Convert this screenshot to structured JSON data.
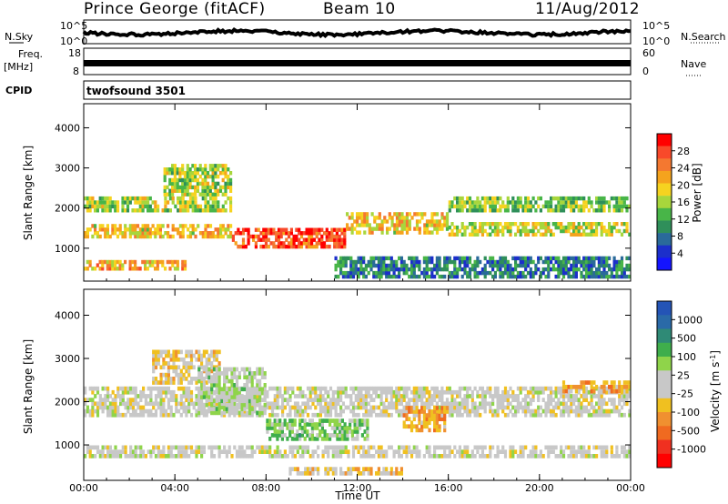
{
  "header": {
    "title": "Prince George (fitACF)",
    "beam": "Beam 10",
    "date": "11/Aug/2012"
  },
  "top_panels": {
    "nsky_label": "N.Sky",
    "nsearch_label": "N.Search",
    "noise_ticks": [
      "10^5",
      "10^0"
    ],
    "freq_label": "Freq.",
    "freq_unit": "[MHz]",
    "freq_ticks": [
      "18",
      "8"
    ],
    "nave_label": "Nave",
    "nave_ticks": [
      "60",
      "0"
    ],
    "cpid_label": "CPID",
    "cpid_value": "twofsound 3501"
  },
  "colorbars": {
    "power": {
      "label": "Power [dB]",
      "ticks": [
        "28",
        "24",
        "20",
        "16",
        "12",
        "8",
        "4"
      ],
      "colors": [
        "#ff0000",
        "#f8492a",
        "#f47830",
        "#f5a31d",
        "#f6d320",
        "#a8d63c",
        "#48b548",
        "#2f8f5a",
        "#2a6a9a",
        "#1c2fcb",
        "#1414ff"
      ]
    },
    "velocity": {
      "label": "Velocity [m s",
      "label_sup": "-1",
      "label_end": "]",
      "ticks": [
        "1000",
        "500",
        "100",
        "25",
        "-25",
        "-100",
        "-500",
        "-1000"
      ],
      "colors": [
        "#2454b6",
        "#2a6aa8",
        "#2f8a76",
        "#3fae4c",
        "#8fd44a",
        "#c8c8c8",
        "#c8c8c8",
        "#f0c020",
        "#f09030",
        "#f06a20",
        "#f03020",
        "#ff0000"
      ]
    }
  },
  "chart_data": [
    {
      "type": "heatmap",
      "title": "Power",
      "xlabel": "Time UT",
      "ylabel": "Slant Range [km]",
      "x_ticks": [
        "00:00",
        "04:00",
        "08:00",
        "12:00",
        "16:00",
        "20:00",
        "00:00"
      ],
      "y_ticks": [
        "4000",
        "3000",
        "2000",
        "1000"
      ],
      "xlim_hours": [
        0,
        24
      ],
      "ylim_km": [
        180,
        4600
      ],
      "colorbar": "Power [dB]",
      "value_range_db": [
        0,
        32
      ],
      "bands": [
        {
          "t0": 0.0,
          "t1": 6.5,
          "r0": 1900,
          "r1": 2300,
          "v": 16
        },
        {
          "t0": 0.0,
          "t1": 6.5,
          "r0": 1250,
          "r1": 1600,
          "v": 20
        },
        {
          "t0": 0.0,
          "t1": 4.5,
          "r0": 450,
          "r1": 700,
          "v": 22
        },
        {
          "t0": 3.5,
          "t1": 6.5,
          "r0": 2300,
          "r1": 3100,
          "v": 16
        },
        {
          "t0": 6.5,
          "t1": 11.5,
          "r0": 1000,
          "r1": 1500,
          "v": 28
        },
        {
          "t0": 11.5,
          "t1": 16.0,
          "r0": 1350,
          "r1": 1900,
          "v": 20
        },
        {
          "t0": 16.0,
          "t1": 24.0,
          "r0": 1900,
          "r1": 2300,
          "v": 14
        },
        {
          "t0": 16.0,
          "t1": 24.0,
          "r0": 1300,
          "r1": 1650,
          "v": 18
        },
        {
          "t0": 11.0,
          "t1": 24.0,
          "r0": 250,
          "r1": 800,
          "v": 8
        }
      ]
    },
    {
      "type": "heatmap",
      "title": "Velocity",
      "xlabel": "Time UT",
      "ylabel": "Slant Range [km]",
      "x_ticks": [
        "00:00",
        "04:00",
        "08:00",
        "12:00",
        "16:00",
        "20:00",
        "00:00"
      ],
      "y_ticks": [
        "4000",
        "3000",
        "2000",
        "1000"
      ],
      "xlim_hours": [
        0,
        24
      ],
      "ylim_km": [
        180,
        4600
      ],
      "colorbar": "Velocity [m s-1]",
      "value_range_ms": [
        -1000,
        1000
      ],
      "bands": [
        {
          "t0": 0.0,
          "t1": 24.0,
          "r0": 1650,
          "r1": 2350,
          "v": 0
        },
        {
          "t0": 0.0,
          "t1": 24.0,
          "r0": 700,
          "r1": 1000,
          "v": 0
        },
        {
          "t0": 3.0,
          "t1": 6.0,
          "r0": 2400,
          "r1": 3200,
          "v": -200
        },
        {
          "t0": 5.0,
          "t1": 8.0,
          "r0": 1700,
          "r1": 2800,
          "v": 150
        },
        {
          "t0": 8.0,
          "t1": 12.5,
          "r0": 1100,
          "r1": 1600,
          "v": 300
        },
        {
          "t0": 14.0,
          "t1": 16.0,
          "r0": 1300,
          "r1": 1900,
          "v": -400
        },
        {
          "t0": 21.0,
          "t1": 24.0,
          "r0": 2200,
          "r1": 2500,
          "v": -400
        },
        {
          "t0": 9.0,
          "t1": 14.0,
          "r0": 300,
          "r1": 500,
          "v": -200
        }
      ]
    }
  ]
}
